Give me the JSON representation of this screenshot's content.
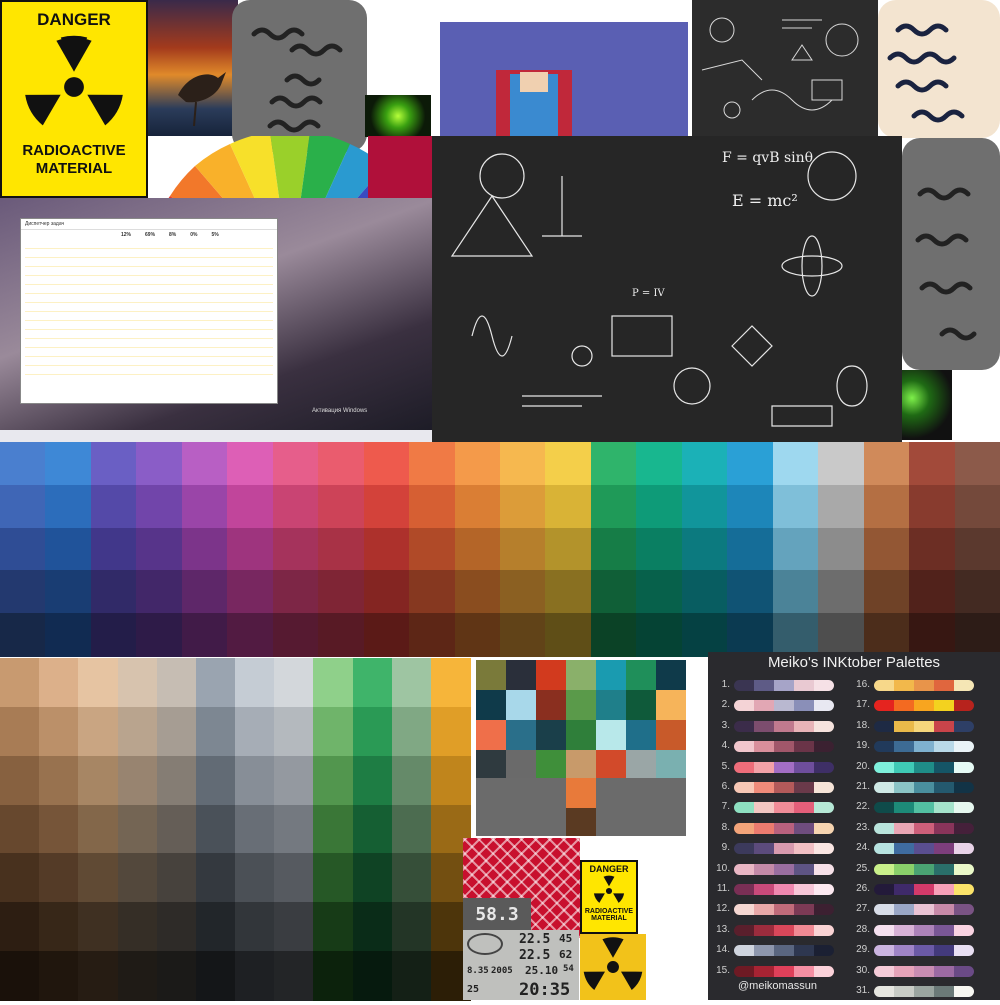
{
  "danger_sign_large": {
    "line1": "DANGER",
    "line2": "RADIOACTIVE",
    "line3": "MATERIAL"
  },
  "danger_sign_small": {
    "line1": "DANGER",
    "line2": "RADIOACTIVE",
    "line3": "MATERIAL"
  },
  "inktober": {
    "title": "Meiko's INKtober Palettes",
    "handle": "@meikomassun",
    "left_numbers": [
      "1.",
      "2.",
      "3.",
      "4.",
      "5.",
      "6.",
      "7.",
      "8.",
      "9.",
      "10.",
      "11.",
      "12.",
      "13.",
      "14.",
      "15."
    ],
    "right_numbers": [
      "16.",
      "17.",
      "18.",
      "19.",
      "20.",
      "21.",
      "22.",
      "23.",
      "24.",
      "25.",
      "26.",
      "27.",
      "28.",
      "29.",
      "30.",
      "31."
    ],
    "left_palettes": [
      [
        "#3a3552",
        "#5e5b86",
        "#a6a4c8",
        "#e9c9d2",
        "#f6e1e6"
      ],
      [
        "#f4d3d6",
        "#e2a7b4",
        "#b9b8d0",
        "#8a8fb8",
        "#e8e8f2"
      ],
      [
        "#3b2c4a",
        "#7c4d6e",
        "#c07a8e",
        "#e8b4b8",
        "#f6e3de"
      ],
      [
        "#f1c6cc",
        "#d98f9b",
        "#a1576a",
        "#6a3448",
        "#3b2131"
      ],
      [
        "#ee6d7a",
        "#f3a2a8",
        "#a36ec4",
        "#6e4e9c",
        "#3e2f66"
      ],
      [
        "#f7c7b5",
        "#ef8b7a",
        "#b35a5a",
        "#6a3a4a",
        "#f6e4d8"
      ],
      [
        "#8ee0c1",
        "#f2c6c2",
        "#f08c98",
        "#e45f7a",
        "#b6e8d6"
      ],
      [
        "#f3a47a",
        "#ec7b6f",
        "#b9617e",
        "#6f4d7e",
        "#f6d4b0"
      ],
      [
        "#3c3a5c",
        "#5c4b7c",
        "#d89aae",
        "#f2c0c4",
        "#fae6e3"
      ],
      [
        "#e9b6c4",
        "#c48aa8",
        "#9a6ea0",
        "#5e5484",
        "#f6e0e8"
      ],
      [
        "#7a2f55",
        "#c94a7a",
        "#ef88b0",
        "#f7c6d8",
        "#fce9f1"
      ],
      [
        "#f5d7d2",
        "#e8a8a8",
        "#c06b7a",
        "#7c3a55",
        "#3c2031"
      ],
      [
        "#5a1f2c",
        "#9c2c3d",
        "#d9475a",
        "#f08a94",
        "#f9d3d4"
      ],
      [
        "#cfd4de",
        "#8e97ad",
        "#5a6680",
        "#2e3750",
        "#1b2033"
      ],
      [
        "#6e1a24",
        "#a72333",
        "#e0405a",
        "#f58fa3",
        "#fbd2da"
      ]
    ],
    "right_palettes": [
      [
        "#f7d88a",
        "#f2b84b",
        "#e8944a",
        "#e0663e",
        "#f5e6b5"
      ],
      [
        "#e5241f",
        "#f36a21",
        "#f8a51f",
        "#f3d21f",
        "#b7231d"
      ],
      [
        "#1e2a44",
        "#e9b94a",
        "#f5d67c",
        "#c9444a",
        "#2e3f66"
      ],
      [
        "#213a5b",
        "#3d6b94",
        "#7fb1cf",
        "#b9d9e8",
        "#eaf3f7"
      ],
      [
        "#7ef0dc",
        "#3fcab6",
        "#1f8d88",
        "#155566",
        "#e6faf5"
      ],
      [
        "#cfe9e6",
        "#8bc4c6",
        "#4a8f9e",
        "#24596e",
        "#123346"
      ],
      [
        "#0f4b4a",
        "#1d8a78",
        "#53c0a2",
        "#a5e3cb",
        "#e6f7ef"
      ],
      [
        "#b9e4dc",
        "#e9a6b4",
        "#cd5f7a",
        "#89345a",
        "#45203a"
      ],
      [
        "#b7e3e0",
        "#3f6ca0",
        "#5a4e90",
        "#7d3e7c",
        "#e8d3e8"
      ],
      [
        "#c9f08a",
        "#8ad06a",
        "#4aa373",
        "#2a6f6a",
        "#eaf8c9"
      ],
      [
        "#231a3a",
        "#3f2a6a",
        "#d33a6a",
        "#f7a0b8",
        "#fbe36a"
      ],
      [
        "#d8dde8",
        "#9aa7c6",
        "#e9c3d3",
        "#c78aa8",
        "#7a5384"
      ],
      [
        "#f5e0ef",
        "#d8b2d6",
        "#ad83b9",
        "#7a5796",
        "#f9d3e2"
      ],
      [
        "#cbb4e0",
        "#9f84c6",
        "#6b5aa6",
        "#433a7c",
        "#e8dff3"
      ],
      [
        "#f5cbd8",
        "#e6a3b9",
        "#c98db2",
        "#9c6aa3",
        "#6a4a86"
      ],
      [
        "#e6e6e0",
        "#c8ccc6",
        "#9aa5a0",
        "#6b7a78",
        "#f7f7f2"
      ]
    ]
  },
  "gauge": {
    "reading": "58.3"
  },
  "weather_station": {
    "r1": "22.5",
    "r1b": "45",
    "r2": "22.5",
    "r2b": "62",
    "date": "8.35",
    "year": "2005",
    "time_small": "25.10",
    "time_small_b": "54",
    "time_big": "20:35",
    "time_big_b": "25"
  },
  "desktop": {
    "watermark": "Активация Windows",
    "window_title": "Диспетчер задач",
    "stats": [
      "12%",
      "69%",
      "8%",
      "0%",
      "5%"
    ]
  },
  "big_palette_columns": [
    [
      "#4a7fcf",
      "#3f66b6",
      "#2f4d95",
      "#23396f",
      "#172848"
    ],
    [
      "#3e88d6",
      "#2c6dbb",
      "#20539a",
      "#193d73",
      "#112b52"
    ],
    [
      "#6a5fc4",
      "#5449a8",
      "#41378a",
      "#312a68",
      "#231d49"
    ],
    [
      "#8a5dc7",
      "#7145aa",
      "#57348a",
      "#422769",
      "#2e1b48"
    ],
    [
      "#b85fc4",
      "#9a45a8",
      "#7c348a",
      "#5e2769",
      "#411b48"
    ],
    [
      "#dd5fb6",
      "#c1459b",
      "#9e347e",
      "#782760",
      "#521b42"
    ],
    [
      "#e65e8b",
      "#c94473",
      "#a5335c",
      "#7d2646",
      "#561a31"
    ],
    [
      "#ea5c6e",
      "#cd4358",
      "#a83246",
      "#7f2535",
      "#581a25"
    ],
    [
      "#ee5a4d",
      "#d3423a",
      "#ad312c",
      "#842522",
      "#5b1a17"
    ],
    [
      "#f07a45",
      "#d65f33",
      "#b04a28",
      "#863820",
      "#5d2616"
    ],
    [
      "#f49a4a",
      "#da7e34",
      "#b46528",
      "#8a4d1f",
      "#603515"
    ],
    [
      "#f6b84f",
      "#dc9c39",
      "#b67f2c",
      "#8b6022",
      "#614318"
    ],
    [
      "#f4cf4a",
      "#d9b336",
      "#b3932b",
      "#897021",
      "#5f4e17"
    ],
    [
      "#2fb46b",
      "#1f9a58",
      "#167d47",
      "#105f37",
      "#0b4226"
    ],
    [
      "#18b78f",
      "#0e9b78",
      "#0a7f62",
      "#07614b",
      "#054334"
    ],
    [
      "#1bb1b7",
      "#11959b",
      "#0c7a7f",
      "#085d61",
      "#054143"
    ],
    [
      "#2aa0d6",
      "#1d86b9",
      "#156d98",
      "#105374",
      "#0b3a51"
    ],
    [
      "#9ed8ef",
      "#7fbfd9",
      "#64a3bd",
      "#4b8398",
      "#345d6c"
    ],
    [
      "#c9c9c9",
      "#a9a9a9",
      "#8c8c8c",
      "#6d6d6d",
      "#4e4e4e"
    ],
    [
      "#d08a5a",
      "#b46f43",
      "#935734",
      "#6f4227",
      "#4c2d1b"
    ],
    [
      "#a24a3a",
      "#883b2e",
      "#6c2e24",
      "#51221b",
      "#371712"
    ],
    [
      "#8c5a4a",
      "#74493b",
      "#5b392e",
      "#432a22",
      "#2d1c17"
    ]
  ],
  "earth_palette_columns": [
    [
      "#c89a70",
      "#a87c55",
      "#876140",
      "#67482e",
      "#48311e",
      "#2d1e12",
      "#1a110a"
    ],
    [
      "#dcb08a",
      "#bb9069",
      "#98724f",
      "#765539",
      "#543b27",
      "#372718",
      "#20160d"
    ],
    [
      "#e6c4a2",
      "#c9a582",
      "#a78664",
      "#83674a",
      "#604a34",
      "#3f3022",
      "#261c13"
    ],
    [
      "#d7c3ae",
      "#b9a48e",
      "#988470",
      "#746554",
      "#53483c",
      "#352e26",
      "#1f1b16"
    ],
    [
      "#c6bdb3",
      "#a69d93",
      "#857d74",
      "#655e57",
      "#47423d",
      "#2e2b28",
      "#1b1a18"
    ],
    [
      "#9aa4b0",
      "#7d8792",
      "#626b75",
      "#4a5159",
      "#34393f",
      "#22262a",
      "#141618"
    ],
    [
      "#c5ccd4",
      "#a6adb6",
      "#878e97",
      "#686e76",
      "#4b5056",
      "#32363a",
      "#1e2023"
    ],
    [
      "#d3d7db",
      "#b4b9be",
      "#9499a0",
      "#747980",
      "#565a60",
      "#3a3d41",
      "#232527"
    ],
    [
      "#8fd08a",
      "#6fb46a",
      "#52964e",
      "#3a7737",
      "#265826",
      "#173b17",
      "#0c220c"
    ],
    [
      "#3fb46a",
      "#2a9a55",
      "#1e7d44",
      "#155f33",
      "#0f4324",
      "#0a2c18",
      "#061a0e"
    ],
    [
      "#9ec5a2",
      "#80a884",
      "#658a69",
      "#4c6c50",
      "#364f39",
      "#233526",
      "#142016"
    ],
    [
      "#f6b53a",
      "#e09e27",
      "#c0851c",
      "#9a6a16",
      "#734f11",
      "#4d350b",
      "#2c1e06"
    ]
  ],
  "mixed_palette": [
    "#7a7a3a",
    "#2a2f3a",
    "#d23a1e",
    "#8ab06a",
    "#1a9bb0",
    "#1f8f5a",
    "#0f3a4a",
    "#0f3a4a",
    "#a8d8ea",
    "#8a2f1f",
    "#5a9a4a",
    "#1f7f8a",
    "#0f5a3a",
    "#f6b45a",
    "#ef6f4a",
    "#2a6f8a",
    "#1a3f4a",
    "#2f7f3a",
    "#b8e8ea",
    "#1f6f8a",
    "#c85a2a",
    "#2f3a3f",
    "#6a6a6a",
    "#3f8f3a",
    "#c89a6a",
    "#d24a2a",
    "#9aa6a6",
    "#7ab0b0"
  ]
}
